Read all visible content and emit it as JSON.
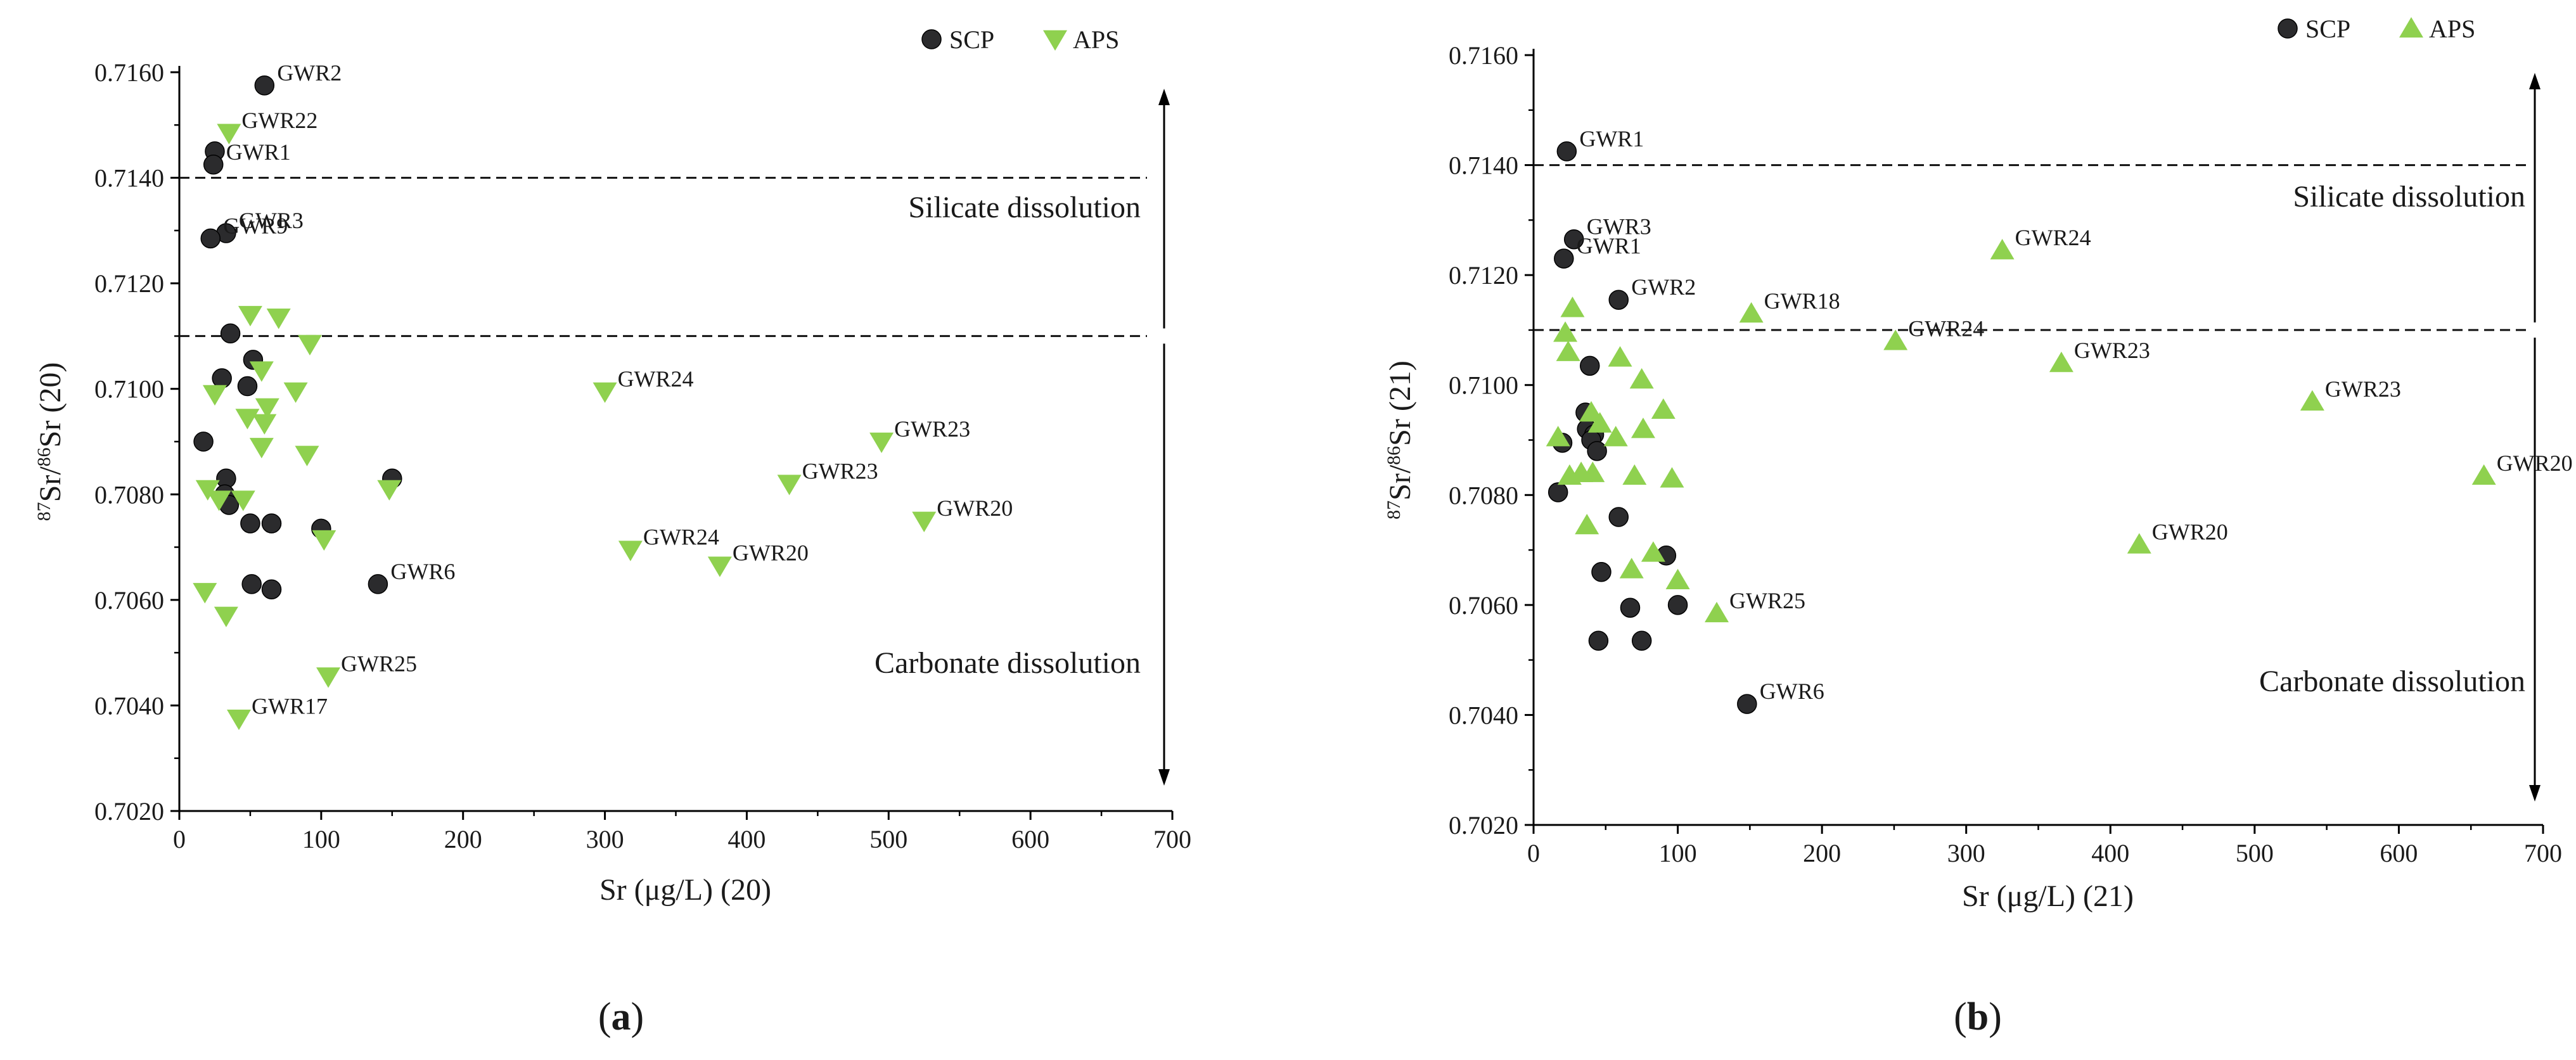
{
  "chart_data": [
    {
      "type": "scatter",
      "panel": "(a)",
      "panel_letter": "a",
      "xlabel": "Sr (μg/L) (20)",
      "ylabel": {
        "pre": "87",
        "a": "Sr/",
        "b": "86",
        "c": "Sr (20)"
      },
      "xlim": [
        0,
        700
      ],
      "ylim": [
        0.702,
        0.716
      ],
      "x_ticks": [
        "0",
        "100",
        "200",
        "300",
        "400",
        "500",
        "600",
        "700"
      ],
      "y_ticks": [
        "0.7020",
        "0.7040",
        "0.7060",
        "0.7080",
        "0.7100",
        "0.7120",
        "0.7140",
        "0.7160"
      ],
      "legend_position": "top-right",
      "legend": [
        {
          "name": "SCP",
          "marker": "circle",
          "color": "#2b2b2d"
        },
        {
          "name": "APS",
          "marker": "triangle-down",
          "color": "#8fd14f"
        }
      ],
      "boundaries": [
        0.714,
        0.711
      ],
      "regions": [
        "Silicate dissolution",
        "Carbonate dissolution"
      ],
      "series": [
        {
          "name": "SCP",
          "points": [
            {
              "x": 60,
              "y": 0.71575,
              "label": "GWR2"
            },
            {
              "x": 25,
              "y": 0.7145,
              "label": ""
            },
            {
              "x": 24,
              "y": 0.71425,
              "label": "GWR1"
            },
            {
              "x": 33,
              "y": 0.71295,
              "label": "GWR3"
            },
            {
              "x": 22,
              "y": 0.71285,
              "label": "GWR9"
            },
            {
              "x": 36,
              "y": 0.71105,
              "label": ""
            },
            {
              "x": 52,
              "y": 0.71055,
              "label": ""
            },
            {
              "x": 30,
              "y": 0.7102,
              "label": ""
            },
            {
              "x": 48,
              "y": 0.71005,
              "label": ""
            },
            {
              "x": 17,
              "y": 0.709,
              "label": ""
            },
            {
              "x": 33,
              "y": 0.7083,
              "label": ""
            },
            {
              "x": 32,
              "y": 0.708,
              "label": ""
            },
            {
              "x": 35,
              "y": 0.7078,
              "label": ""
            },
            {
              "x": 50,
              "y": 0.70745,
              "label": ""
            },
            {
              "x": 65,
              "y": 0.70745,
              "label": ""
            },
            {
              "x": 100,
              "y": 0.70735,
              "label": ""
            },
            {
              "x": 150,
              "y": 0.7083,
              "label": ""
            },
            {
              "x": 51,
              "y": 0.7063,
              "label": ""
            },
            {
              "x": 65,
              "y": 0.7062,
              "label": ""
            },
            {
              "x": 140,
              "y": 0.7063,
              "label": "GWR6"
            }
          ]
        },
        {
          "name": "APS",
          "points": [
            {
              "x": 35,
              "y": 0.71485,
              "label": "GWR22"
            },
            {
              "x": 50,
              "y": 0.7114,
              "label": ""
            },
            {
              "x": 70,
              "y": 0.71135,
              "label": ""
            },
            {
              "x": 92,
              "y": 0.71085,
              "label": ""
            },
            {
              "x": 58,
              "y": 0.71035,
              "label": ""
            },
            {
              "x": 25,
              "y": 0.7099,
              "label": ""
            },
            {
              "x": 82,
              "y": 0.70995,
              "label": ""
            },
            {
              "x": 62,
              "y": 0.70965,
              "label": ""
            },
            {
              "x": 48,
              "y": 0.70945,
              "label": ""
            },
            {
              "x": 60,
              "y": 0.70935,
              "label": ""
            },
            {
              "x": 58,
              "y": 0.7089,
              "label": ""
            },
            {
              "x": 90,
              "y": 0.70875,
              "label": ""
            },
            {
              "x": 20,
              "y": 0.7081,
              "label": ""
            },
            {
              "x": 28,
              "y": 0.7079,
              "label": ""
            },
            {
              "x": 45,
              "y": 0.7079,
              "label": ""
            },
            {
              "x": 148,
              "y": 0.7081,
              "label": ""
            },
            {
              "x": 102,
              "y": 0.70715,
              "label": ""
            },
            {
              "x": 18,
              "y": 0.70615,
              "label": ""
            },
            {
              "x": 33,
              "y": 0.7057,
              "label": ""
            },
            {
              "x": 105,
              "y": 0.70455,
              "label": "GWR25"
            },
            {
              "x": 42,
              "y": 0.70375,
              "label": "GWR17"
            },
            {
              "x": 300,
              "y": 0.70995,
              "label": "GWR24"
            },
            {
              "x": 318,
              "y": 0.70695,
              "label": "GWR24"
            },
            {
              "x": 381,
              "y": 0.70665,
              "label": "GWR20"
            },
            {
              "x": 430,
              "y": 0.7082,
              "label": "GWR23"
            },
            {
              "x": 495,
              "y": 0.709,
              "label": "GWR23"
            },
            {
              "x": 525,
              "y": 0.7075,
              "label": "GWR20"
            }
          ]
        }
      ]
    },
    {
      "type": "scatter",
      "panel": "(b)",
      "panel_letter": "b",
      "xlabel": "Sr (μg/L) (21)",
      "ylabel": {
        "pre": "87",
        "a": "Sr/",
        "b": "86",
        "c": "Sr (21)"
      },
      "xlim": [
        0,
        700
      ],
      "ylim": [
        0.702,
        0.716
      ],
      "x_ticks": [
        "0",
        "100",
        "200",
        "300",
        "400",
        "500",
        "600",
        "700"
      ],
      "y_ticks": [
        "0.7020",
        "0.7040",
        "0.7060",
        "0.7080",
        "0.7100",
        "0.7120",
        "0.7140",
        "0.7160"
      ],
      "legend_position": "top-right",
      "legend": [
        {
          "name": "SCP",
          "marker": "circle",
          "color": "#2b2b2d"
        },
        {
          "name": "APS",
          "marker": "triangle-up",
          "color": "#8fd14f"
        }
      ],
      "boundaries": [
        0.714,
        0.711
      ],
      "regions": [
        "Silicate dissolution",
        "Carbonate dissolution"
      ],
      "series": [
        {
          "name": "SCP",
          "points": [
            {
              "x": 23,
              "y": 0.71425,
              "label": "GWR1"
            },
            {
              "x": 28,
              "y": 0.71265,
              "label": "GWR3"
            },
            {
              "x": 21,
              "y": 0.7123,
              "label": "GWR1"
            },
            {
              "x": 59,
              "y": 0.71155,
              "label": "GWR2"
            },
            {
              "x": 39,
              "y": 0.71035,
              "label": ""
            },
            {
              "x": 36,
              "y": 0.7095,
              "label": ""
            },
            {
              "x": 37,
              "y": 0.7092,
              "label": ""
            },
            {
              "x": 42,
              "y": 0.7091,
              "label": ""
            },
            {
              "x": 40,
              "y": 0.709,
              "label": ""
            },
            {
              "x": 20,
              "y": 0.70895,
              "label": ""
            },
            {
              "x": 44,
              "y": 0.7088,
              "label": ""
            },
            {
              "x": 17,
              "y": 0.70805,
              "label": ""
            },
            {
              "x": 59,
              "y": 0.7076,
              "label": ""
            },
            {
              "x": 92,
              "y": 0.7069,
              "label": ""
            },
            {
              "x": 47,
              "y": 0.7066,
              "label": ""
            },
            {
              "x": 100,
              "y": 0.706,
              "label": ""
            },
            {
              "x": 67,
              "y": 0.70595,
              "label": ""
            },
            {
              "x": 45,
              "y": 0.70535,
              "label": ""
            },
            {
              "x": 75,
              "y": 0.70535,
              "label": ""
            },
            {
              "x": 148,
              "y": 0.7042,
              "label": "GWR6"
            }
          ]
        },
        {
          "name": "APS",
          "points": [
            {
              "x": 27,
              "y": 0.7114,
              "label": ""
            },
            {
              "x": 22,
              "y": 0.71095,
              "label": ""
            },
            {
              "x": 24,
              "y": 0.7106,
              "label": ""
            },
            {
              "x": 60,
              "y": 0.7105,
              "label": ""
            },
            {
              "x": 75,
              "y": 0.7101,
              "label": ""
            },
            {
              "x": 40,
              "y": 0.7095,
              "label": ""
            },
            {
              "x": 90,
              "y": 0.70955,
              "label": ""
            },
            {
              "x": 46,
              "y": 0.7093,
              "label": ""
            },
            {
              "x": 76,
              "y": 0.7092,
              "label": ""
            },
            {
              "x": 17,
              "y": 0.70905,
              "label": ""
            },
            {
              "x": 57,
              "y": 0.70905,
              "label": ""
            },
            {
              "x": 25,
              "y": 0.70835,
              "label": ""
            },
            {
              "x": 33,
              "y": 0.7084,
              "label": ""
            },
            {
              "x": 41,
              "y": 0.7084,
              "label": ""
            },
            {
              "x": 70,
              "y": 0.70835,
              "label": ""
            },
            {
              "x": 96,
              "y": 0.7083,
              "label": ""
            },
            {
              "x": 37,
              "y": 0.70745,
              "label": ""
            },
            {
              "x": 83,
              "y": 0.70695,
              "label": ""
            },
            {
              "x": 68,
              "y": 0.70665,
              "label": ""
            },
            {
              "x": 100,
              "y": 0.70645,
              "label": ""
            },
            {
              "x": 127,
              "y": 0.70585,
              "label": "GWR25"
            },
            {
              "x": 151,
              "y": 0.7113,
              "label": "GWR18"
            },
            {
              "x": 251,
              "y": 0.7108,
              "label": "GWR24"
            },
            {
              "x": 325,
              "y": 0.71245,
              "label": "GWR24"
            },
            {
              "x": 366,
              "y": 0.7104,
              "label": "GWR23"
            },
            {
              "x": 420,
              "y": 0.7071,
              "label": "GWR20"
            },
            {
              "x": 540,
              "y": 0.7097,
              "label": "GWR23"
            },
            {
              "x": 659,
              "y": 0.70835,
              "label": "GWR20"
            }
          ]
        }
      ]
    }
  ]
}
